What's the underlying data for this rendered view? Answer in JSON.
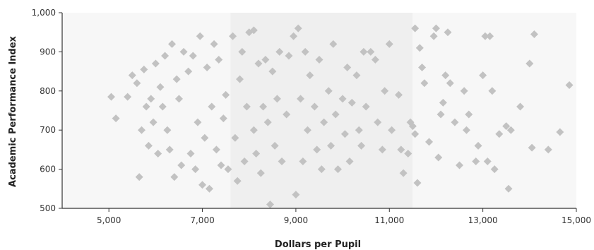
{
  "chart_data": {
    "type": "scatter",
    "title": "",
    "xlabel": "Dollars per Pupil",
    "ylabel": "Academic Performance Index",
    "xlim": [
      4000,
      15000
    ],
    "ylim": [
      500,
      1000
    ],
    "x_ticks": [
      5000,
      7000,
      9000,
      11000,
      13000,
      15000
    ],
    "x_tick_labels": [
      "5,000",
      "7,000",
      "9,000",
      "11,000",
      "13,000",
      "15,000"
    ],
    "y_ticks": [
      500,
      600,
      700,
      800,
      900,
      1000
    ],
    "y_tick_labels": [
      "500",
      "600",
      "700",
      "800",
      "900",
      "1,000"
    ],
    "marker": "diamond",
    "grid": false,
    "legend": "none",
    "colors": {
      "points": "#c2c2c2",
      "band_light": "#f7f7f7",
      "band_dark": "#efefef",
      "axis": "#333333"
    },
    "series": [
      {
        "points": [
          [
            5050,
            785
          ],
          [
            5150,
            730
          ],
          [
            5400,
            785
          ],
          [
            5500,
            840
          ],
          [
            5600,
            820
          ],
          [
            5650,
            580
          ],
          [
            5700,
            700
          ],
          [
            5750,
            855
          ],
          [
            5800,
            760
          ],
          [
            5850,
            660
          ],
          [
            5900,
            780
          ],
          [
            5950,
            720
          ],
          [
            6000,
            870
          ],
          [
            6050,
            640
          ],
          [
            6100,
            810
          ],
          [
            6150,
            760
          ],
          [
            6200,
            890
          ],
          [
            6250,
            700
          ],
          [
            6300,
            650
          ],
          [
            6350,
            920
          ],
          [
            6400,
            580
          ],
          [
            6450,
            830
          ],
          [
            6500,
            780
          ],
          [
            6550,
            610
          ],
          [
            6600,
            900
          ],
          [
            6700,
            850
          ],
          [
            6750,
            640
          ],
          [
            6800,
            890
          ],
          [
            6850,
            600
          ],
          [
            6900,
            720
          ],
          [
            6950,
            940
          ],
          [
            7000,
            560
          ],
          [
            7050,
            680
          ],
          [
            7100,
            860
          ],
          [
            7150,
            550
          ],
          [
            7200,
            760
          ],
          [
            7250,
            920
          ],
          [
            7300,
            650
          ],
          [
            7350,
            880
          ],
          [
            7400,
            610
          ],
          [
            7450,
            730
          ],
          [
            7500,
            790
          ],
          [
            7550,
            600
          ],
          [
            7650,
            940
          ],
          [
            7700,
            680
          ],
          [
            7750,
            570
          ],
          [
            7800,
            830
          ],
          [
            7850,
            900
          ],
          [
            7900,
            620
          ],
          [
            7950,
            760
          ],
          [
            8000,
            950
          ],
          [
            8100,
            955
          ],
          [
            8100,
            700
          ],
          [
            8150,
            640
          ],
          [
            8200,
            870
          ],
          [
            8250,
            590
          ],
          [
            8300,
            760
          ],
          [
            8350,
            880
          ],
          [
            8400,
            720
          ],
          [
            8450,
            510
          ],
          [
            8500,
            850
          ],
          [
            8550,
            660
          ],
          [
            8600,
            780
          ],
          [
            8650,
            900
          ],
          [
            8700,
            620
          ],
          [
            8800,
            740
          ],
          [
            8850,
            890
          ],
          [
            8950,
            940
          ],
          [
            9000,
            535
          ],
          [
            9050,
            960
          ],
          [
            9100,
            780
          ],
          [
            9150,
            620
          ],
          [
            9200,
            900
          ],
          [
            9250,
            700
          ],
          [
            9300,
            840
          ],
          [
            9400,
            760
          ],
          [
            9450,
            650
          ],
          [
            9500,
            880
          ],
          [
            9550,
            600
          ],
          [
            9600,
            720
          ],
          [
            9700,
            800
          ],
          [
            9750,
            660
          ],
          [
            9800,
            920
          ],
          [
            9850,
            740
          ],
          [
            9900,
            600
          ],
          [
            10000,
            780
          ],
          [
            10050,
            690
          ],
          [
            10100,
            860
          ],
          [
            10150,
            620
          ],
          [
            10200,
            770
          ],
          [
            10300,
            840
          ],
          [
            10350,
            700
          ],
          [
            10400,
            660
          ],
          [
            10450,
            900
          ],
          [
            10500,
            760
          ],
          [
            10600,
            900
          ],
          [
            10700,
            880
          ],
          [
            10750,
            720
          ],
          [
            10850,
            650
          ],
          [
            10900,
            800
          ],
          [
            11000,
            920
          ],
          [
            11050,
            700
          ],
          [
            11200,
            790
          ],
          [
            11250,
            650
          ],
          [
            11300,
            590
          ],
          [
            11400,
            640
          ],
          [
            11450,
            720
          ],
          [
            11500,
            710
          ],
          [
            11550,
            690
          ],
          [
            11550,
            960
          ],
          [
            11600,
            565
          ],
          [
            11650,
            910
          ],
          [
            11700,
            860
          ],
          [
            11750,
            820
          ],
          [
            11850,
            670
          ],
          [
            11950,
            940
          ],
          [
            12000,
            960
          ],
          [
            12050,
            630
          ],
          [
            12100,
            740
          ],
          [
            12150,
            770
          ],
          [
            12200,
            840
          ],
          [
            12250,
            950
          ],
          [
            12300,
            820
          ],
          [
            12400,
            720
          ],
          [
            12500,
            610
          ],
          [
            12600,
            800
          ],
          [
            12650,
            700
          ],
          [
            12700,
            740
          ],
          [
            12850,
            620
          ],
          [
            12900,
            660
          ],
          [
            13000,
            840
          ],
          [
            13050,
            940
          ],
          [
            13100,
            620
          ],
          [
            13150,
            940
          ],
          [
            13200,
            800
          ],
          [
            13250,
            600
          ],
          [
            13350,
            690
          ],
          [
            13500,
            710
          ],
          [
            13550,
            550
          ],
          [
            13600,
            700
          ],
          [
            13800,
            760
          ],
          [
            14000,
            870
          ],
          [
            14050,
            655
          ],
          [
            14100,
            945
          ],
          [
            14400,
            650
          ],
          [
            14650,
            695
          ],
          [
            14850,
            815
          ]
        ]
      }
    ]
  }
}
